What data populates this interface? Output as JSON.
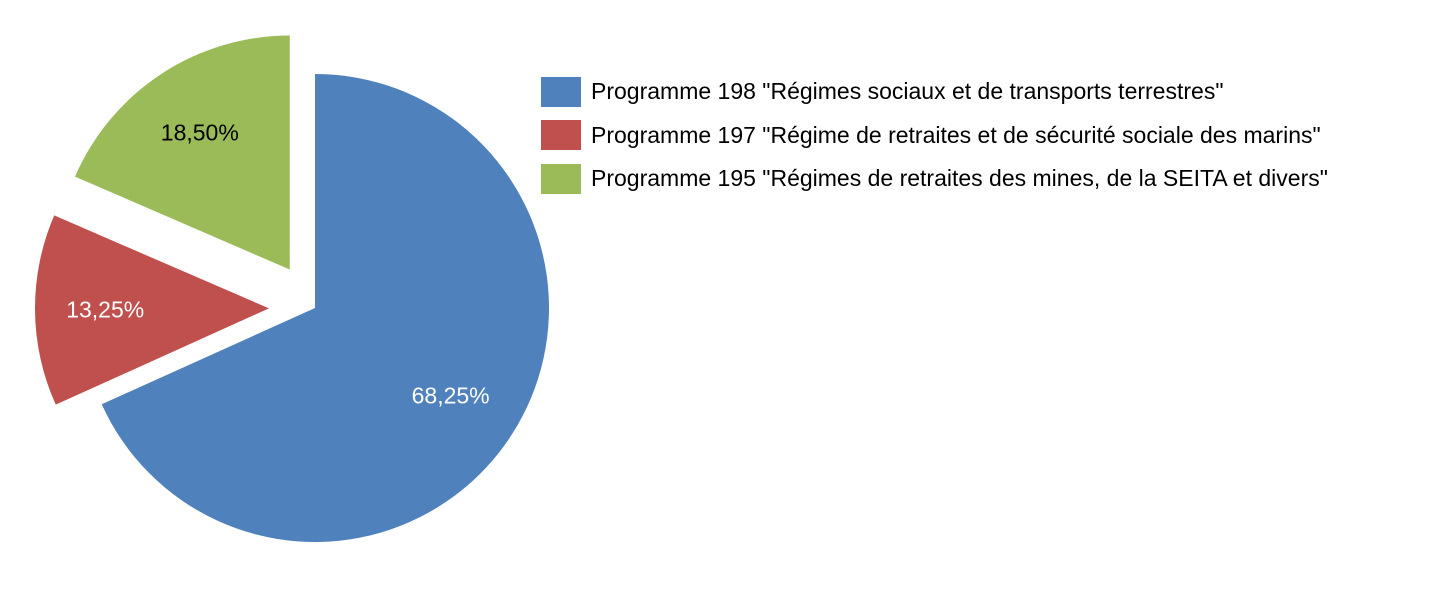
{
  "chart_data": {
    "type": "pie",
    "title": "",
    "start_angle": "12 o'clock",
    "direction": "clockwise",
    "legend_position": "right",
    "slices": [
      {
        "name": "Programme 198 \"Régimes sociaux et de transports terrestres\"",
        "value": 68.25,
        "label": "68,25%",
        "color": "#4F81BD",
        "label_color": "#FFFFFF",
        "exploded": false
      },
      {
        "name": "Programme 197 \"Régime de retraites et de sécurité sociale des marins\"",
        "value": 13.25,
        "label": "13,25%",
        "color": "#C0504D",
        "label_color": "#FFFFFF",
        "exploded": true
      },
      {
        "name": "Programme 195 \"Régimes de retraites des mines, de la SEITA et divers\"",
        "value": 18.5,
        "label": "18,50%",
        "color": "#9BBB59",
        "label_color": "#000000",
        "exploded": true
      }
    ]
  }
}
